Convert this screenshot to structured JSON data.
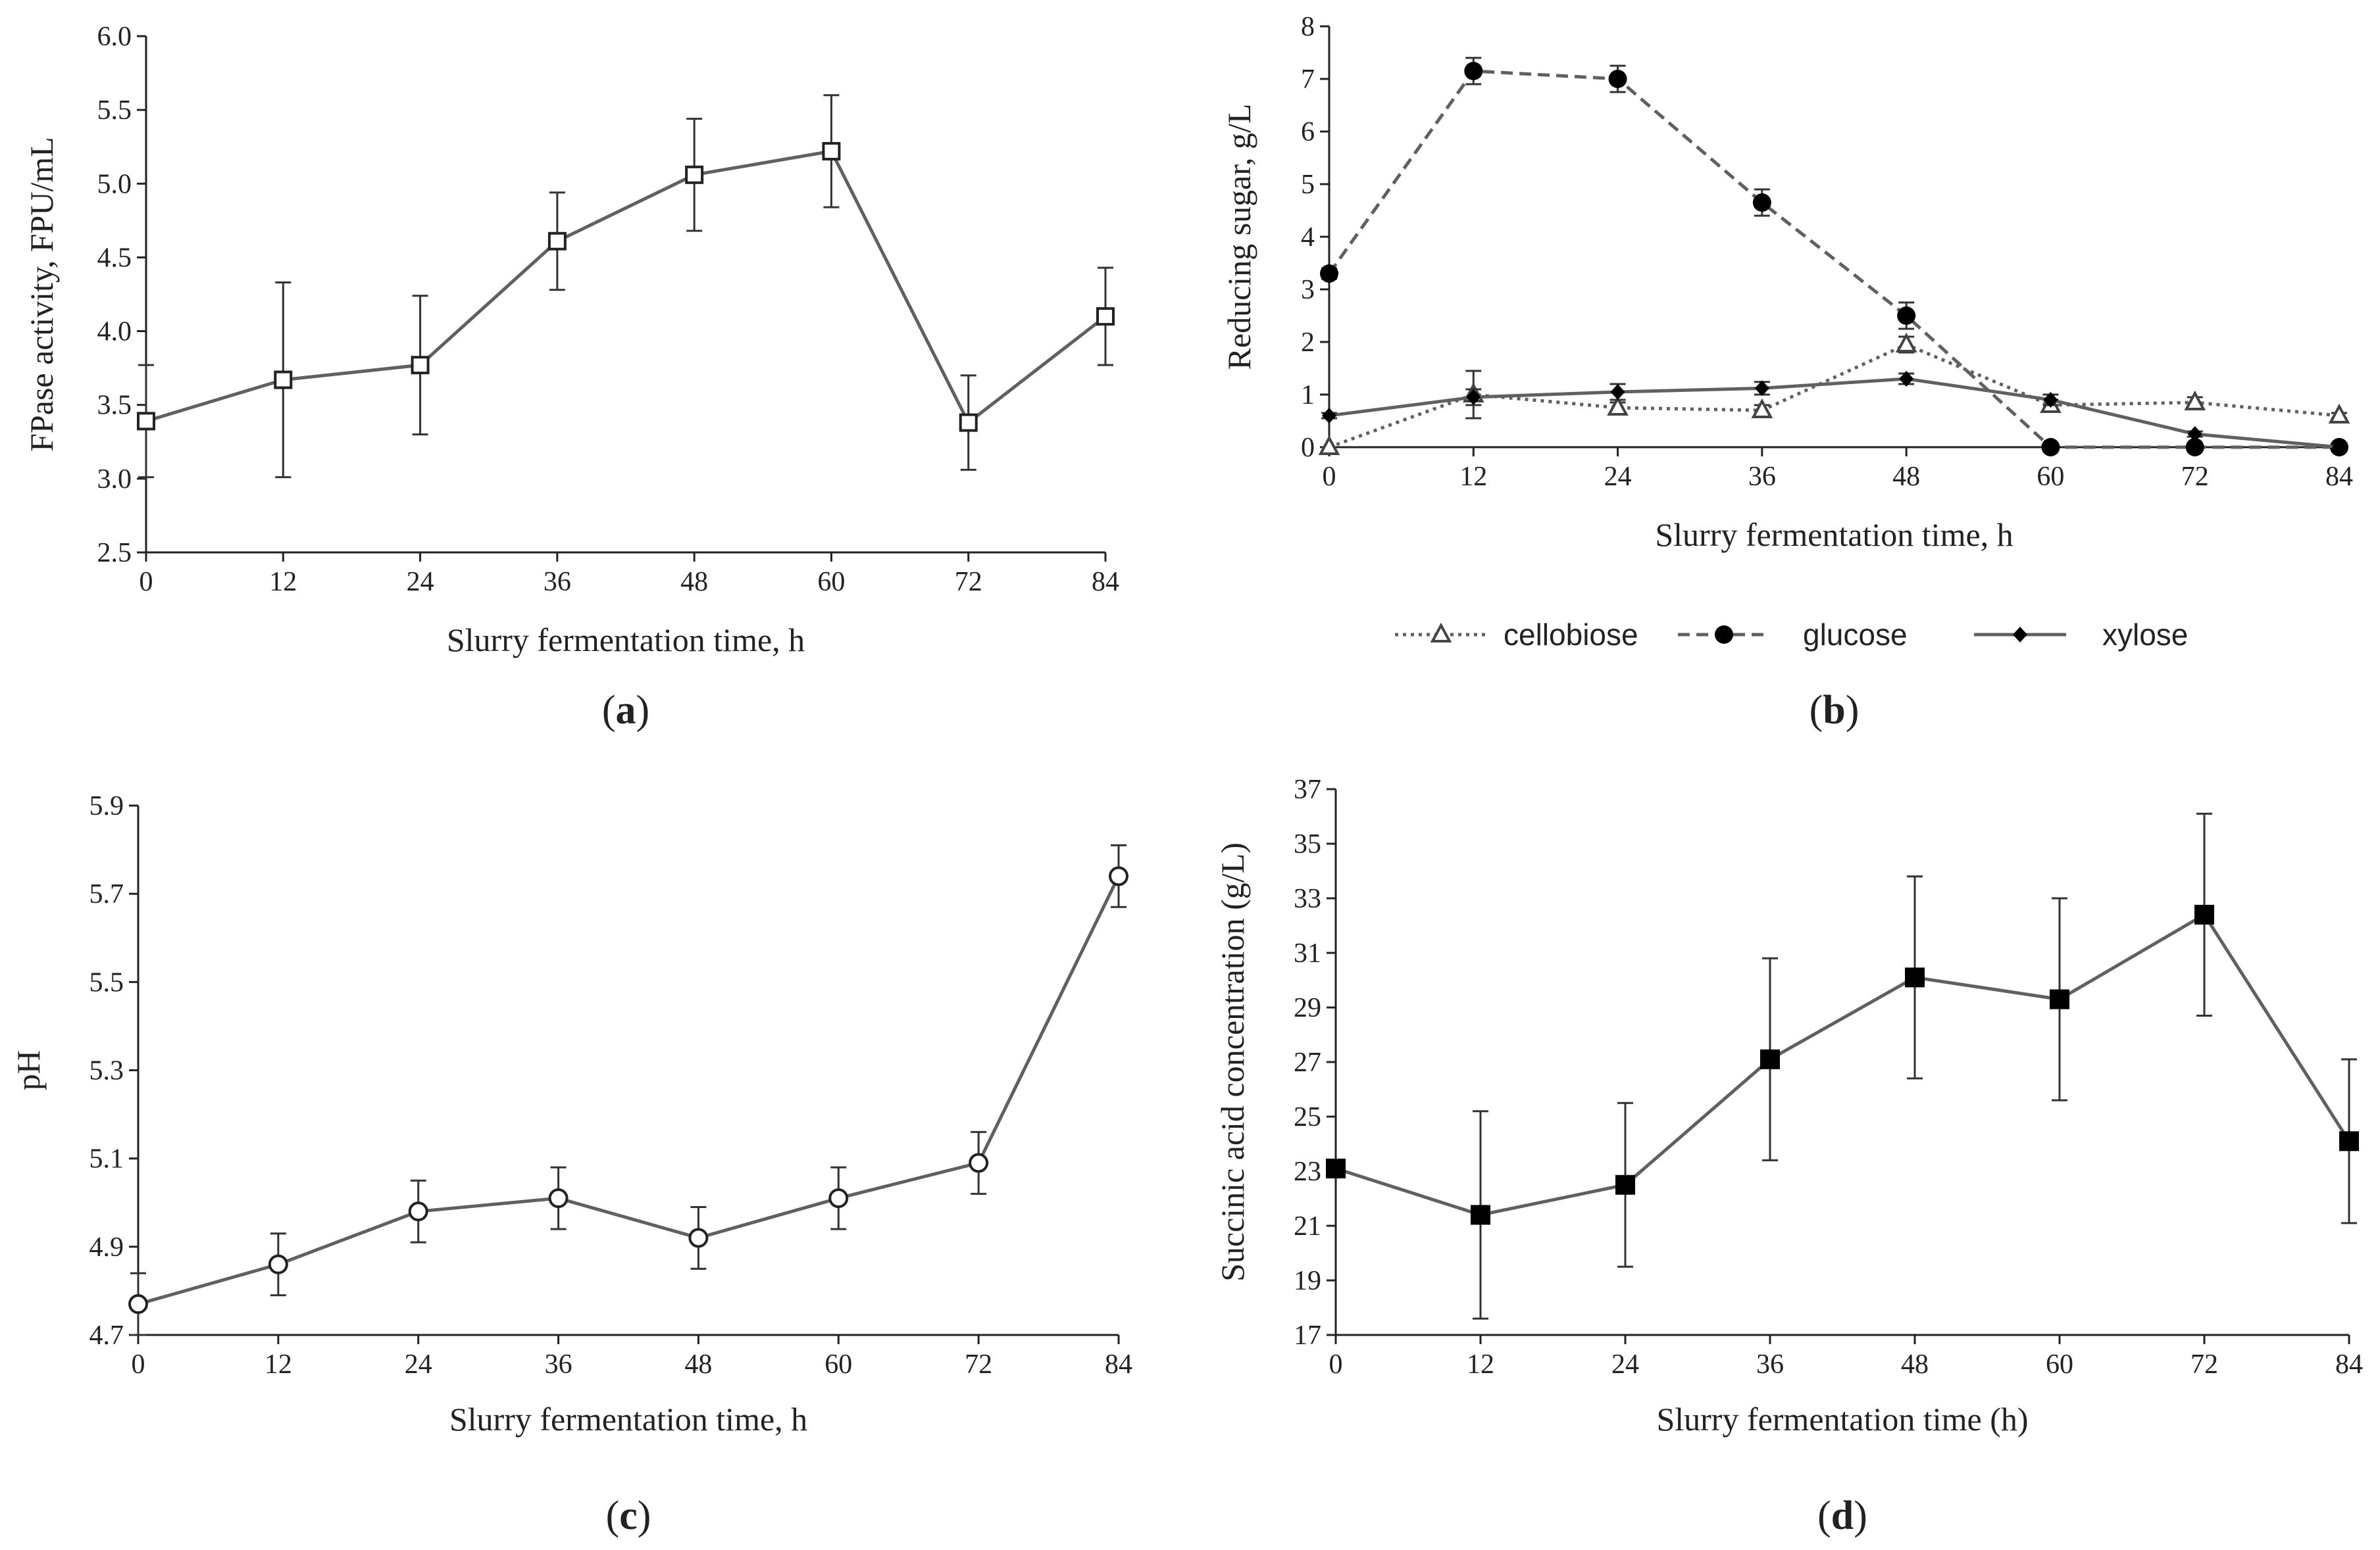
{
  "chart_data": [
    {
      "panel_label": "a",
      "type": "line",
      "xlabel": "Slurry fermentation time, h",
      "ylabel": "FPase activity, FPU/mL",
      "xlim": [
        0,
        84
      ],
      "ylim": [
        2.5,
        6.0
      ],
      "xticks": [
        "0",
        "12",
        "24",
        "36",
        "48",
        "60",
        "72",
        "84"
      ],
      "yticks": [
        "2.5",
        "3.0",
        "3.5",
        "4.0",
        "4.5",
        "5.0",
        "5.5",
        "6.0"
      ],
      "grid": false,
      "series": [
        {
          "marker": "open-square",
          "line": "solid",
          "x": [
            0,
            12,
            24,
            36,
            48,
            60,
            72,
            84
          ],
          "y": [
            3.39,
            3.67,
            3.77,
            4.61,
            5.06,
            5.22,
            3.38,
            4.1
          ],
          "err": [
            0.38,
            0.66,
            0.47,
            0.33,
            0.38,
            0.38,
            0.32,
            0.33
          ]
        }
      ]
    },
    {
      "panel_label": "b",
      "type": "line",
      "xlabel": "Slurry fermentation time, h",
      "ylabel": "Reducing sugar, g/L",
      "xlim": [
        0,
        84
      ],
      "ylim": [
        0,
        8
      ],
      "xticks": [
        "0",
        "12",
        "24",
        "36",
        "48",
        "60",
        "72",
        "84"
      ],
      "yticks": [
        "0",
        "1",
        "2",
        "3",
        "4",
        "5",
        "6",
        "7",
        "8"
      ],
      "grid": false,
      "legend_position": "bottom",
      "series": [
        {
          "name": "cellobiose",
          "marker": "open-triangle",
          "line": "dotted",
          "x": [
            0,
            12,
            24,
            36,
            48,
            60,
            72,
            84
          ],
          "y": [
            0.0,
            1.0,
            0.75,
            0.7,
            1.95,
            0.8,
            0.85,
            0.6
          ],
          "err": [
            0,
            0.45,
            0.1,
            0.1,
            0.15,
            0.1,
            0.1,
            0.05
          ]
        },
        {
          "name": "glucose",
          "marker": "filled-circle",
          "line": "dashed",
          "x": [
            0,
            12,
            24,
            36,
            48,
            60,
            72,
            84
          ],
          "y": [
            3.3,
            7.15,
            7.0,
            4.65,
            2.5,
            0.0,
            0.0,
            0.0
          ],
          "err": [
            0.1,
            0.25,
            0.25,
            0.25,
            0.25,
            0,
            0,
            0
          ]
        },
        {
          "name": "xylose",
          "marker": "filled-diamond",
          "line": "solid",
          "x": [
            0,
            12,
            24,
            36,
            48,
            60,
            72,
            84
          ],
          "y": [
            0.6,
            0.95,
            1.05,
            1.12,
            1.3,
            0.9,
            0.25,
            0.0
          ],
          "err": [
            0.05,
            0.15,
            0.15,
            0.12,
            0.1,
            0.1,
            0.05,
            0
          ]
        }
      ]
    },
    {
      "panel_label": "c",
      "type": "line",
      "xlabel": "Slurry fermentation time, h",
      "ylabel": "pH",
      "xlim": [
        0,
        84
      ],
      "ylim": [
        4.7,
        5.9
      ],
      "xticks": [
        "0",
        "12",
        "24",
        "36",
        "48",
        "60",
        "72",
        "84"
      ],
      "yticks": [
        "4.7",
        "4.9",
        "5.1",
        "5.3",
        "5.5",
        "5.7",
        "5.9"
      ],
      "grid": false,
      "series": [
        {
          "marker": "open-circle",
          "line": "solid",
          "x": [
            0,
            12,
            24,
            36,
            48,
            60,
            72,
            84
          ],
          "y": [
            4.77,
            4.86,
            4.98,
            5.01,
            4.92,
            5.01,
            5.09,
            5.74
          ],
          "err": [
            0.07,
            0.07,
            0.07,
            0.07,
            0.07,
            0.07,
            0.07,
            0.07
          ]
        }
      ]
    },
    {
      "panel_label": "d",
      "type": "line",
      "xlabel": "Slurry fermentation time (h)",
      "ylabel": "Succinic acid concentration (g/L)",
      "xlim": [
        0,
        84
      ],
      "ylim": [
        17,
        37
      ],
      "xticks": [
        "0",
        "12",
        "24",
        "36",
        "48",
        "60",
        "72",
        "84"
      ],
      "yticks": [
        "17",
        "19",
        "21",
        "23",
        "25",
        "27",
        "29",
        "31",
        "33",
        "35",
        "37"
      ],
      "grid": false,
      "series": [
        {
          "marker": "filled-square",
          "line": "solid",
          "x": [
            0,
            12,
            24,
            36,
            48,
            60,
            72,
            84
          ],
          "y": [
            23.1,
            21.4,
            22.5,
            27.1,
            30.1,
            29.3,
            32.4,
            24.1
          ],
          "err": [
            0,
            3.8,
            3.0,
            3.7,
            3.7,
            3.7,
            3.7,
            3.0
          ]
        }
      ]
    }
  ]
}
